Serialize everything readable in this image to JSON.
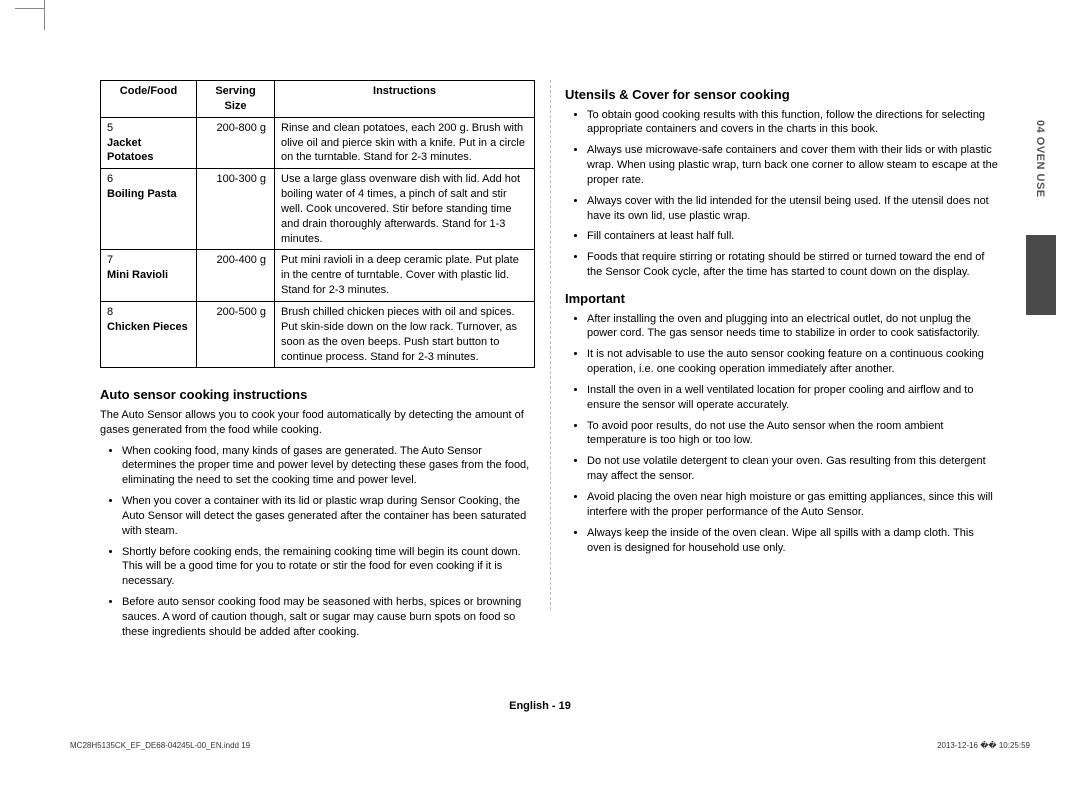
{
  "table": {
    "headers": [
      "Code/Food",
      "Serving Size",
      "Instructions"
    ],
    "rows": [
      {
        "code": "5",
        "name": "Jacket Potatoes",
        "serving": "200-800 g",
        "instr": "Rinse and clean potatoes, each 200 g. Brush with olive oil and pierce skin with a knife. Put in a circle on the turntable. Stand for 2-3 minutes."
      },
      {
        "code": "6",
        "name": "Boiling Pasta",
        "serving": "100-300 g",
        "instr": "Use a large glass ovenware dish with lid. Add hot boiling water of 4 times, a pinch of salt and stir well. Cook uncovered. Stir before standing time and drain thoroughly afterwards. Stand for 1-3 minutes."
      },
      {
        "code": "7",
        "name": "Mini Ravioli",
        "serving": "200-400 g",
        "instr": "Put mini ravioli in a deep ceramic plate. Put plate in the centre of turntable. Cover with plastic lid. Stand for 2-3 minutes."
      },
      {
        "code": "8",
        "name": "Chicken Pieces",
        "serving": "200-500 g",
        "instr": "Brush chilled chicken pieces with oil and spices. Put skin-side down on the low rack. Turnover, as soon as the oven beeps. Push start button to continue process. Stand for 2-3 minutes."
      }
    ]
  },
  "left": {
    "heading": "Auto sensor cooking instructions",
    "lead": "The Auto Sensor allows you to cook your food automatically by detecting the amount of gases generated from the food while cooking.",
    "bullets": [
      "When cooking food, many kinds of gases are generated.\nThe Auto Sensor determines the proper time and power level by detecting these gases from the food, eliminating the need to set the cooking time and power level.",
      "When you cover a container with its lid or plastic wrap during Sensor Cooking, the Auto Sensor will detect the gases generated after the container has been saturated with steam.",
      "Shortly before cooking ends, the remaining cooking time will begin its count down. This will be a good time for you to rotate or stir the food for even cooking if it is necessary.",
      "Before auto sensor cooking food may be seasoned with herbs, spices or browning sauces. A word of caution though, salt or sugar may cause burn spots on food so these ingredients should be added after cooking."
    ]
  },
  "right": {
    "heading1": "Utensils & Cover for sensor cooking",
    "bullets1": [
      "To obtain good cooking results with this function, follow the directions for selecting appropriate containers and covers in the charts in this book.",
      "Always use microwave-safe containers and cover them with their lids or with plastic wrap. When using plastic wrap, turn back one corner to allow steam to escape at the proper rate.",
      "Always cover with the lid intended for the utensil being used. If the utensil does not have its own lid, use plastic wrap.",
      "Fill containers at least half full.",
      "Foods that require stirring or rotating should be stirred or turned toward the end of the Sensor Cook cycle, after the time has started to count down on the display."
    ],
    "heading2": "Important",
    "bullets2": [
      "After installing the oven and plugging into an electrical outlet, do not unplug the power cord. The gas sensor needs time to stabilize in order to cook satisfactorily.",
      "It is not advisable to use the auto sensor cooking feature on a continuous cooking operation, i.e. one cooking operation immediately after another.",
      "Install the oven in a well ventilated location for proper cooling and airflow and to ensure the sensor will operate accurately.",
      "To avoid poor results, do not use the Auto sensor when the room ambient temperature is too high or too low.",
      "Do not use volatile detergent to clean your oven. Gas resulting from this detergent may affect the sensor.",
      "Avoid placing the oven near high moisture or gas emitting appliances, since this will interfere with the proper performance of the Auto Sensor.",
      "Always keep the inside of the oven clean. Wipe all spills with a damp cloth. This oven is designed for household use only."
    ]
  },
  "side": "04  OVEN USE",
  "footer": "English - 19",
  "indd_left": "MC28H5135CK_EF_DE68-04245L-00_EN.indd   19",
  "indd_right": "2013-12-16   �� 10:25:59"
}
